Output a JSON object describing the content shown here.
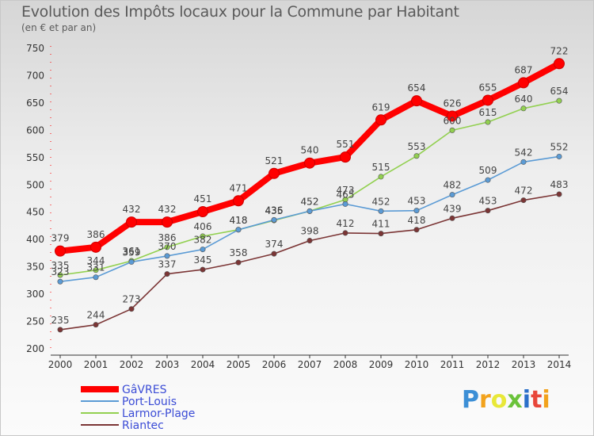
{
  "header": {
    "title": "Evolution des Impôts locaux pour la Commune par Habitant",
    "subtitle": "(en € et par an)"
  },
  "logo": {
    "text": "Proxiti",
    "colors": [
      "#3c8fd6",
      "#f2a21c",
      "#e8e838",
      "#6ac23a",
      "#2a6fc9",
      "#e8463a",
      "#f2a21c"
    ]
  },
  "chart_data": {
    "type": "line",
    "x": [
      2000,
      2001,
      2002,
      2003,
      2004,
      2005,
      2006,
      2007,
      2008,
      2009,
      2010,
      2011,
      2012,
      2013,
      2014
    ],
    "ylim": [
      200,
      750
    ],
    "yticks": [
      200,
      250,
      300,
      350,
      400,
      450,
      500,
      550,
      600,
      650,
      700,
      750
    ],
    "grid": false,
    "legend_position": "bottom-left",
    "series": [
      {
        "name": "GâVRES",
        "color": "#ff0000",
        "values": [
          379,
          386,
          432,
          432,
          451,
          471,
          521,
          540,
          551,
          619,
          654,
          626,
          655,
          687,
          722
        ]
      },
      {
        "name": "Port-Louis",
        "color": "#5b9bd5",
        "values": [
          323,
          331,
          359,
          370,
          382,
          418,
          436,
          452,
          465,
          452,
          453,
          482,
          509,
          542,
          552
        ]
      },
      {
        "name": "Larmor-Plage",
        "color": "#92d050",
        "values": [
          335,
          344,
          361,
          386,
          406,
          418,
          435,
          452,
          473,
          515,
          553,
          600,
          615,
          640,
          654
        ]
      },
      {
        "name": "Riantec",
        "color": "#7b3535",
        "values": [
          235,
          244,
          273,
          337,
          345,
          358,
          374,
          398,
          412,
          411,
          418,
          439,
          453,
          472,
          483
        ]
      }
    ]
  }
}
